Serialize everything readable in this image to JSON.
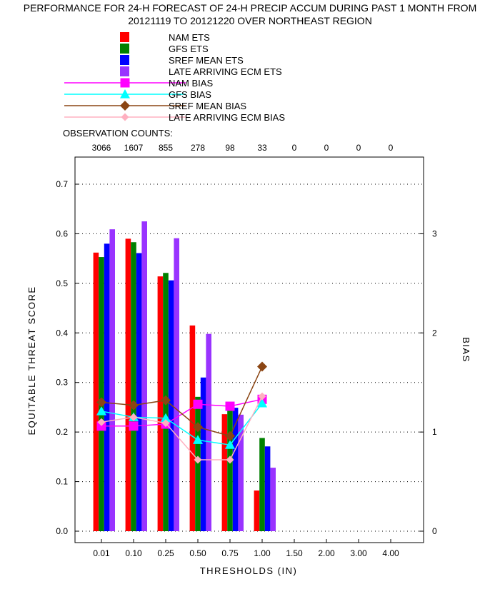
{
  "title_line1": "PERFORMANCE FOR 24-H FORECAST OF 24-H PRECIP ACCUM DURING PAST 1 MONTH FROM",
  "title_line2": "20121119 TO 20121220 OVER NORTHEAST REGION",
  "chart_data": {
    "type": "bar",
    "title": "PERFORMANCE FOR 24-H FORECAST OF 24-H PRECIP ACCUM DURING PAST 1 MONTH FROM 20121119 TO 20121220 OVER NORTHEAST REGION",
    "xlabel": "THRESHOLDS (IN)",
    "ylabel": "EQUITABLE THREAT SCORE",
    "y2label": "BIAS",
    "ylim": [
      0,
      0.7
    ],
    "y2lim": [
      0,
      3.5
    ],
    "yticks": [
      "0.0",
      "0.1",
      "0.2",
      "0.3",
      "0.4",
      "0.5",
      "0.6",
      "0.7"
    ],
    "y2ticks": [
      "0",
      "1",
      "2",
      "3"
    ],
    "grid": true,
    "legend": "top-left",
    "categories": [
      "0.01",
      "0.10",
      "0.25",
      "0.50",
      "0.75",
      "1.00",
      "1.50",
      "2.00",
      "3.00",
      "4.00"
    ],
    "obs_label": "OBSERVATION COUNTS:",
    "obs_counts": [
      "3066",
      "1607",
      "855",
      "278",
      "98",
      "33",
      "0",
      "0",
      "0",
      "0"
    ],
    "bar_series": [
      {
        "name": "NAM ETS",
        "color": "#ff0000",
        "values": [
          0.562,
          0.59,
          0.514,
          0.415,
          0.236,
          0.082,
          null,
          null,
          null,
          null
        ]
      },
      {
        "name": "GFS ETS",
        "color": "#008000",
        "values": [
          0.553,
          0.583,
          0.521,
          0.271,
          0.245,
          0.188,
          null,
          null,
          null,
          null
        ]
      },
      {
        "name": "SREF MEAN ETS",
        "color": "#0000ff",
        "values": [
          0.58,
          0.561,
          0.506,
          0.31,
          0.249,
          0.171,
          null,
          null,
          null,
          null
        ]
      },
      {
        "name": "LATE ARRIVING ECM ETS",
        "color": "#9933ff",
        "values": [
          0.609,
          0.625,
          0.591,
          0.398,
          0.235,
          0.128,
          null,
          null,
          null,
          null
        ]
      }
    ],
    "line_series": [
      {
        "name": "NAM BIAS",
        "color": "#ff00ff",
        "marker": "square",
        "values": [
          1.06,
          1.06,
          1.08,
          1.28,
          1.26,
          1.33,
          null,
          null,
          null,
          null
        ]
      },
      {
        "name": "GFS BIAS",
        "color": "#00ffff",
        "marker": "triangle",
        "values": [
          1.21,
          1.15,
          1.14,
          0.92,
          0.87,
          1.29,
          null,
          null,
          null,
          null
        ]
      },
      {
        "name": "SREF MEAN BIAS",
        "color": "#8b4513",
        "marker": "diamond",
        "values": [
          1.3,
          1.27,
          1.32,
          1.05,
          0.96,
          1.66,
          null,
          null,
          null,
          null
        ]
      },
      {
        "name": "LATE ARRIVING ECM BIAS",
        "color": "#ffb0c0",
        "marker": "diamond",
        "values": [
          1.1,
          1.15,
          1.09,
          0.72,
          0.72,
          1.36,
          null,
          null,
          null,
          null
        ]
      }
    ]
  }
}
